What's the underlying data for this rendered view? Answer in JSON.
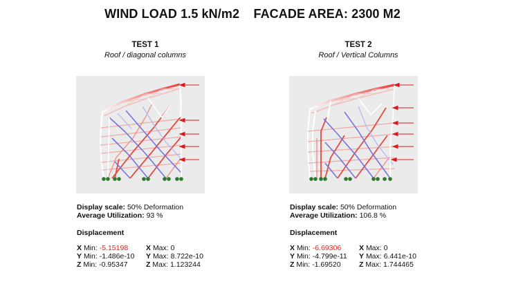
{
  "title": "WIND LOAD 1.5 kN/m2    FACADE AREA: 2300 M2",
  "tests": [
    {
      "heading": "TEST 1",
      "subtitle": "Roof / diagonal columns",
      "display_scale_label": "Display scale:",
      "display_scale_value": "50% Deformation",
      "utilization_label": "Average Utilization:",
      "utilization_value": "93 %",
      "displacement_heading": "Displacement",
      "x_axis": "X",
      "x_min_label": "Min:",
      "x_min": "-5.15198",
      "x_max_label": "Max:",
      "x_max": "0",
      "y_axis": "Y",
      "y_min_label": "Min:",
      "y_min": "-1.486e-10",
      "y_max_label": "Max:",
      "y_max": "8.722e-10",
      "z_axis": "Z",
      "z_min_label": "Min:",
      "z_min": "-0.95347",
      "z_max_label": "Max:",
      "z_max": "1.123244"
    },
    {
      "heading": "TEST 2",
      "subtitle": "Roof / Vertical Columns",
      "display_scale_label": "Display scale:",
      "display_scale_value": "50% Deformation",
      "utilization_label": "Average Utilization:",
      "utilization_value": "106.8 %",
      "displacement_heading": "Displacement",
      "x_axis": "X",
      "x_min_label": "Min:",
      "x_min": "-6.69306",
      "x_max_label": "Max:",
      "x_max": "0",
      "y_axis": "Y",
      "y_min_label": "Min:",
      "y_min": "-4.799e-11",
      "y_max_label": "Max:",
      "y_max": "6.441e-10",
      "z_axis": "Z",
      "z_min_label": "Min:",
      "z_min": "-1.69520",
      "z_max_label": "Max:",
      "z_max": "1.744465"
    }
  ],
  "colors": {
    "tension": "#e8403a",
    "compression": "#6f6fe0",
    "neutral": "#f4f4f4",
    "load_arrow": "#d81b1b",
    "support": "#2c7a2c",
    "diagram_bg": "#ebebeb",
    "negative_value": "#d8281f"
  }
}
